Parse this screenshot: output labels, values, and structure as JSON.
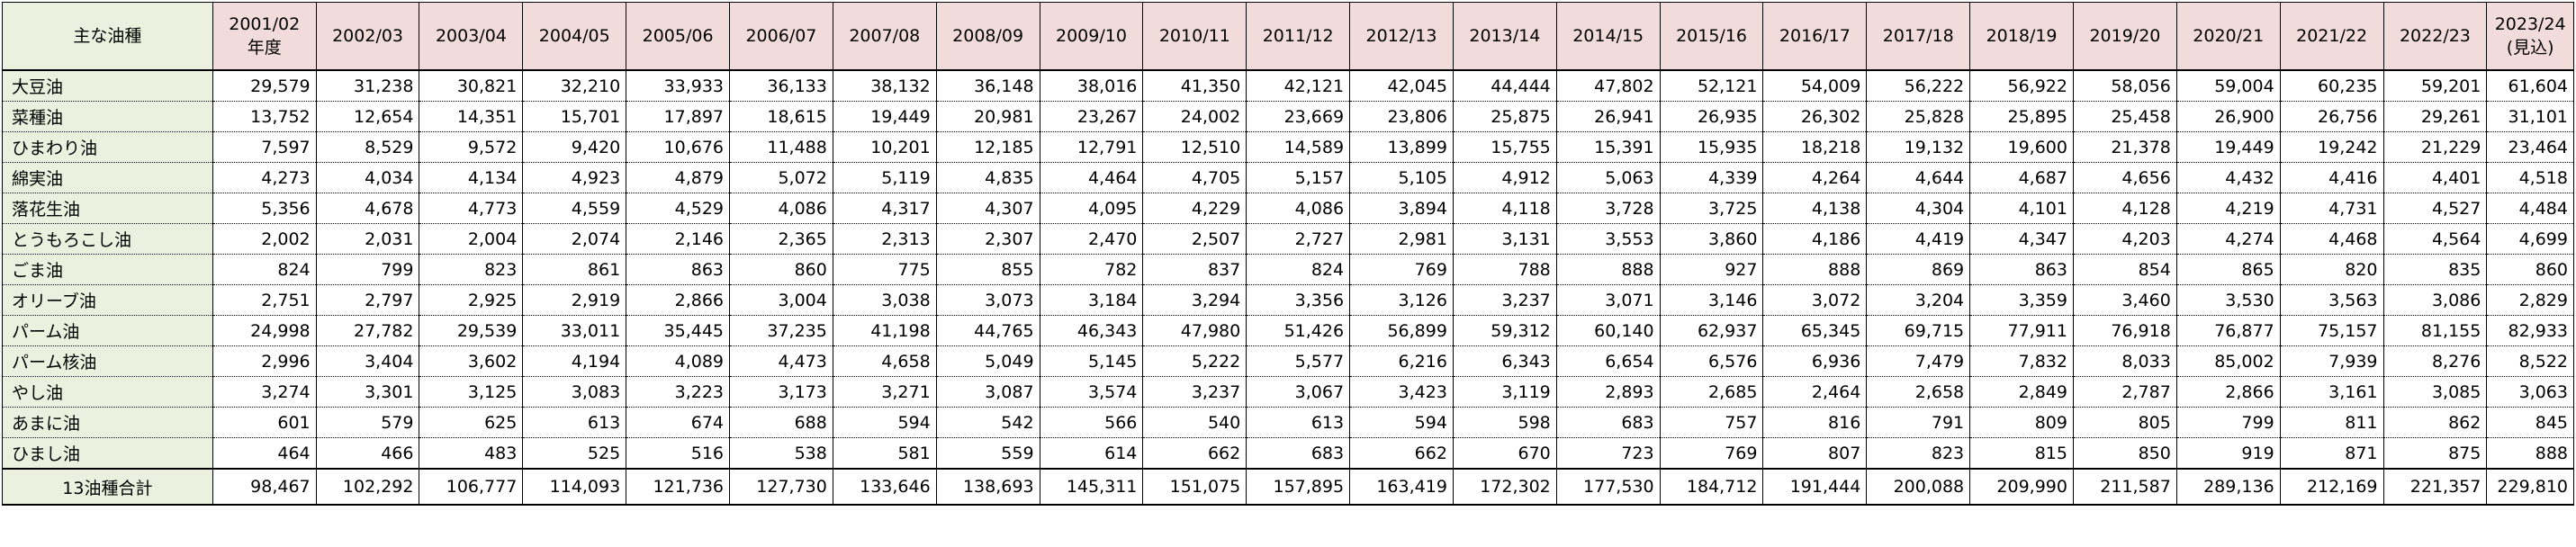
{
  "header": {
    "corner_label": "主な油種",
    "years": [
      "2001/02\n年度",
      "2002/03",
      "2003/04",
      "2004/05",
      "2005/06",
      "2006/07",
      "2007/08",
      "2008/09",
      "2009/10",
      "2010/11",
      "2011/12",
      "2012/13",
      "2013/14",
      "2014/15",
      "2015/16",
      "2016/17",
      "2017/18",
      "2018/19",
      "2019/20",
      "2020/21",
      "2021/22",
      "2022/23",
      "2023/24\n(見込)"
    ]
  },
  "rows": [
    {
      "name": "大豆油",
      "values": [
        "29,579",
        "31,238",
        "30,821",
        "32,210",
        "33,933",
        "36,133",
        "38,132",
        "36,148",
        "38,016",
        "41,350",
        "42,121",
        "42,045",
        "44,444",
        "47,802",
        "52,121",
        "54,009",
        "56,222",
        "56,922",
        "58,056",
        "59,004",
        "60,235",
        "59,201",
        "61,604"
      ]
    },
    {
      "name": "菜種油",
      "values": [
        "13,752",
        "12,654",
        "14,351",
        "15,701",
        "17,897",
        "18,615",
        "19,449",
        "20,981",
        "23,267",
        "24,002",
        "23,669",
        "23,806",
        "25,875",
        "26,941",
        "26,935",
        "26,302",
        "25,828",
        "25,895",
        "25,458",
        "26,900",
        "26,756",
        "29,261",
        "31,101"
      ]
    },
    {
      "name": "ひまわり油",
      "values": [
        "7,597",
        "8,529",
        "9,572",
        "9,420",
        "10,676",
        "11,488",
        "10,201",
        "12,185",
        "12,791",
        "12,510",
        "14,589",
        "13,899",
        "15,755",
        "15,391",
        "15,935",
        "18,218",
        "19,132",
        "19,600",
        "21,378",
        "19,449",
        "19,242",
        "21,229",
        "23,464"
      ]
    },
    {
      "name": "綿実油",
      "values": [
        "4,273",
        "4,034",
        "4,134",
        "4,923",
        "4,879",
        "5,072",
        "5,119",
        "4,835",
        "4,464",
        "4,705",
        "5,157",
        "5,105",
        "4,912",
        "5,063",
        "4,339",
        "4,264",
        "4,644",
        "4,687",
        "4,656",
        "4,432",
        "4,416",
        "4,401",
        "4,518"
      ]
    },
    {
      "name": "落花生油",
      "values": [
        "5,356",
        "4,678",
        "4,773",
        "4,559",
        "4,529",
        "4,086",
        "4,317",
        "4,307",
        "4,095",
        "4,229",
        "4,086",
        "3,894",
        "4,118",
        "3,728",
        "3,725",
        "4,138",
        "4,304",
        "4,101",
        "4,128",
        "4,219",
        "4,731",
        "4,527",
        "4,484"
      ]
    },
    {
      "name": "とうもろこし油",
      "values": [
        "2,002",
        "2,031",
        "2,004",
        "2,074",
        "2,146",
        "2,365",
        "2,313",
        "2,307",
        "2,470",
        "2,507",
        "2,727",
        "2,981",
        "3,131",
        "3,553",
        "3,860",
        "4,186",
        "4,419",
        "4,347",
        "4,203",
        "4,274",
        "4,468",
        "4,564",
        "4,699"
      ]
    },
    {
      "name": "ごま油",
      "values": [
        "824",
        "799",
        "823",
        "861",
        "863",
        "860",
        "775",
        "855",
        "782",
        "837",
        "824",
        "769",
        "788",
        "888",
        "927",
        "888",
        "869",
        "863",
        "854",
        "865",
        "820",
        "835",
        "860"
      ]
    },
    {
      "name": "オリーブ油",
      "values": [
        "2,751",
        "2,797",
        "2,925",
        "2,919",
        "2,866",
        "3,004",
        "3,038",
        "3,073",
        "3,184",
        "3,294",
        "3,356",
        "3,126",
        "3,237",
        "3,071",
        "3,146",
        "3,072",
        "3,204",
        "3,359",
        "3,460",
        "3,530",
        "3,563",
        "3,086",
        "2,829"
      ]
    },
    {
      "name": "パーム油",
      "values": [
        "24,998",
        "27,782",
        "29,539",
        "33,011",
        "35,445",
        "37,235",
        "41,198",
        "44,765",
        "46,343",
        "47,980",
        "51,426",
        "56,899",
        "59,312",
        "60,140",
        "62,937",
        "65,345",
        "69,715",
        "77,911",
        "76,918",
        "76,877",
        "75,157",
        "81,155",
        "82,933"
      ]
    },
    {
      "name": "パーム核油",
      "values": [
        "2,996",
        "3,404",
        "3,602",
        "4,194",
        "4,089",
        "4,473",
        "4,658",
        "5,049",
        "5,145",
        "5,222",
        "5,577",
        "6,216",
        "6,343",
        "6,654",
        "6,576",
        "6,936",
        "7,479",
        "7,832",
        "8,033",
        "85,002",
        "7,939",
        "8,276",
        "8,522"
      ]
    },
    {
      "name": "やし油",
      "values": [
        "3,274",
        "3,301",
        "3,125",
        "3,083",
        "3,223",
        "3,173",
        "3,271",
        "3,087",
        "3,574",
        "3,237",
        "3,067",
        "3,423",
        "3,119",
        "2,893",
        "2,685",
        "2,464",
        "2,658",
        "2,849",
        "2,787",
        "2,866",
        "3,161",
        "3,085",
        "3,063"
      ]
    },
    {
      "name": "あまに油",
      "values": [
        "601",
        "579",
        "625",
        "613",
        "674",
        "688",
        "594",
        "542",
        "566",
        "540",
        "613",
        "594",
        "598",
        "683",
        "757",
        "816",
        "791",
        "809",
        "805",
        "799",
        "811",
        "862",
        "845"
      ]
    },
    {
      "name": "ひまし油",
      "values": [
        "464",
        "466",
        "483",
        "525",
        "516",
        "538",
        "581",
        "559",
        "614",
        "662",
        "683",
        "662",
        "670",
        "723",
        "769",
        "807",
        "823",
        "815",
        "850",
        "919",
        "871",
        "875",
        "888"
      ]
    }
  ],
  "total": {
    "name": "13油種合計",
    "values": [
      "98,467",
      "102,292",
      "106,777",
      "114,093",
      "121,736",
      "127,730",
      "133,646",
      "138,693",
      "145,311",
      "151,075",
      "157,895",
      "163,419",
      "172,302",
      "177,530",
      "184,712",
      "191,444",
      "200,088",
      "209,990",
      "211,587",
      "289,136",
      "212,169",
      "221,357",
      "229,810"
    ]
  },
  "colors": {
    "corner_bg": "#ebf1de",
    "year_header_bg": "#f2dcdb",
    "grid": "#000000"
  }
}
